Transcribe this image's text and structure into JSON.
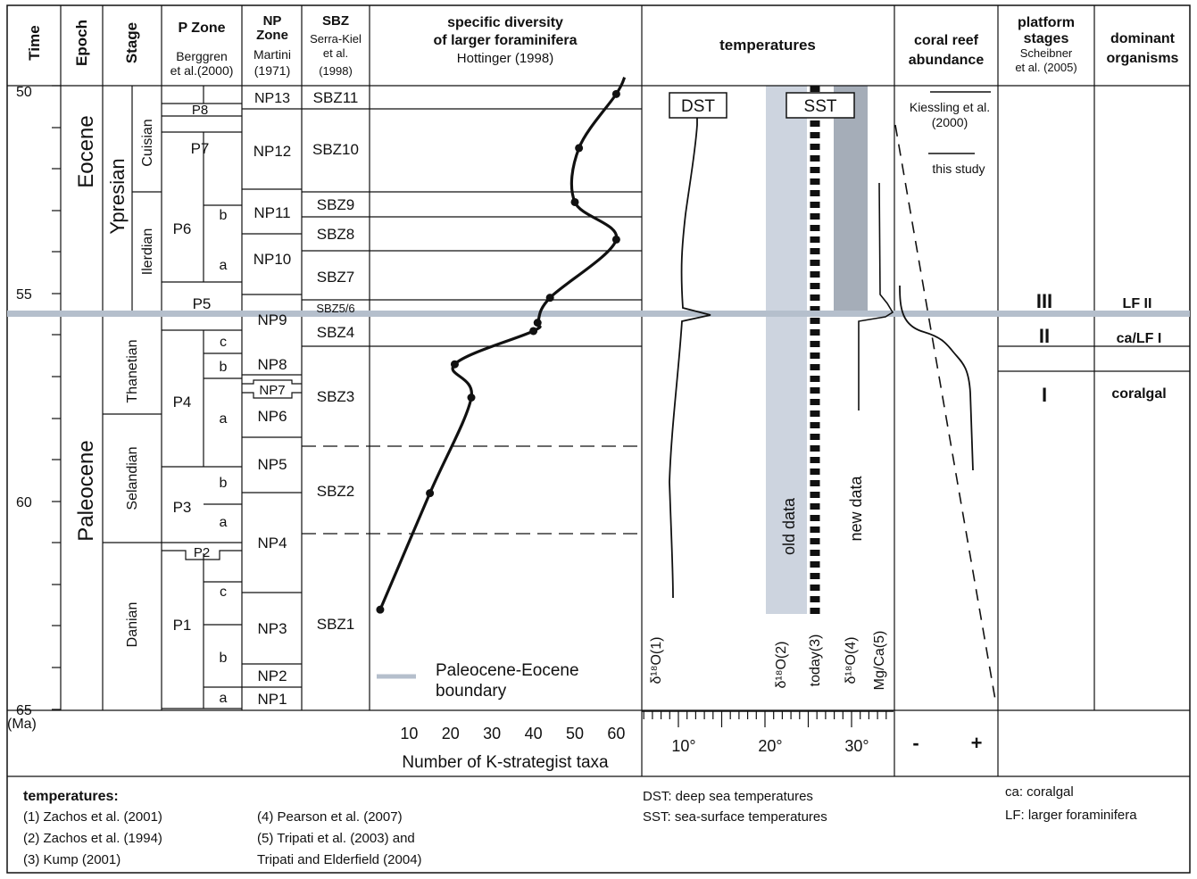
{
  "headers": {
    "time": "Time",
    "epoch": "Epoch",
    "stage": "Stage",
    "pzone": {
      "title": "P Zone",
      "l1": "Berggren",
      "l2": "et al.(2000)"
    },
    "npzone": {
      "t1": "NP",
      "t2": "Zone",
      "l1": "Martini",
      "l2": "(1971)"
    },
    "sbz": {
      "title": "SBZ",
      "l1": "Serra-Kiel",
      "l2": "et al.",
      "l3": "(1998)"
    },
    "diversity": {
      "t1": "specific diversity",
      "t2": "of larger foraminifera",
      "l1": "Hottinger (1998)"
    },
    "temperatures": "temperatures",
    "coral": {
      "t1": "coral reef",
      "t2": "abundance"
    },
    "platform": {
      "t1": "platform",
      "t2": "stages",
      "l1": "Scheibner",
      "l2": "et al. (2005)"
    },
    "organisms": {
      "t1": "dominant",
      "t2": "organisms"
    }
  },
  "time_axis": {
    "ticks": [
      {
        "age": 50,
        "label": "50"
      },
      {
        "age": 55,
        "label": "55"
      },
      {
        "age": 60,
        "label": "60"
      },
      {
        "age": 65,
        "label": "65"
      }
    ],
    "unit": "(Ma)"
  },
  "epochs": [
    {
      "name": "Eocene",
      "top": 50,
      "bottom": 55.5
    },
    {
      "name": "Paleocene",
      "top": 55.5,
      "bottom": 65
    }
  ],
  "stages": [
    {
      "name": "Ypresian"
    },
    {
      "name": "Cuisian"
    },
    {
      "name": "Ilerdian"
    },
    {
      "name": "Thanetian"
    },
    {
      "name": "Selandian"
    },
    {
      "name": "Danian"
    }
  ],
  "pzones": [
    {
      "name": "P8"
    },
    {
      "name": "P7"
    },
    {
      "name": "P6"
    },
    {
      "name": "b"
    },
    {
      "name": "a"
    },
    {
      "name": "P5"
    },
    {
      "name": "P4"
    },
    {
      "name": "c"
    },
    {
      "name": "b"
    },
    {
      "name": "a"
    },
    {
      "name": "P3"
    },
    {
      "name": "b"
    },
    {
      "name": "a"
    },
    {
      "name": "P2"
    },
    {
      "name": "P1"
    },
    {
      "name": "c"
    },
    {
      "name": "b"
    },
    {
      "name": "a"
    }
  ],
  "npzones": [
    "NP13",
    "NP12",
    "NP11",
    "NP10",
    "NP9",
    "NP8",
    "NP7",
    "NP6",
    "NP5",
    "NP4",
    "NP3",
    "NP2",
    "NP1"
  ],
  "sbzones": [
    "SBZ11",
    "SBZ10",
    "SBZ9",
    "SBZ8",
    "SBZ7",
    "SBZ5/6",
    "SBZ4",
    "SBZ3",
    "SBZ2",
    "SBZ1"
  ],
  "chart_data": {
    "type": "line",
    "xlabel": "Number of K-strategist taxa",
    "ylabel": "Time (Ma)",
    "xticks": [
      10,
      20,
      30,
      40,
      50,
      60
    ],
    "xlim": [
      0,
      65
    ],
    "ylim": [
      50,
      65
    ],
    "series": [
      {
        "name": "specific diversity of larger foraminifera",
        "points": [
          {
            "age": 50.2,
            "taxa": 60
          },
          {
            "age": 51.5,
            "taxa": 51
          },
          {
            "age": 52.8,
            "taxa": 50
          },
          {
            "age": 53.7,
            "taxa": 60
          },
          {
            "age": 55.1,
            "taxa": 44
          },
          {
            "age": 55.7,
            "taxa": 41
          },
          {
            "age": 55.9,
            "taxa": 40
          },
          {
            "age": 56.7,
            "taxa": 21
          },
          {
            "age": 57.5,
            "taxa": 25
          },
          {
            "age": 59.8,
            "taxa": 15
          },
          {
            "age": 62.6,
            "taxa": 3
          }
        ]
      }
    ],
    "legend": "Paleocene-Eocene boundary"
  },
  "temps": {
    "dst": "DST",
    "sst": "SST",
    "old": "old data",
    "new": "new data",
    "axis_ticks": [
      "10°",
      "20°",
      "30°"
    ],
    "labels": [
      "δ¹⁸O(1)",
      "δ¹⁸O(2)",
      "today(3)",
      "δ¹⁸O(4)",
      "Mg/Ca(5)"
    ]
  },
  "coral": {
    "kiessling": "Kiessling et al.",
    "kiessling2": "(2000)",
    "this_study": "this study",
    "minus": "-",
    "plus": "+"
  },
  "platform_stages": [
    "III",
    "II",
    "I"
  ],
  "organisms": [
    "LF II",
    "ca/LF I",
    "coralgal"
  ],
  "footer": {
    "title": "temperatures:",
    "refs_left": [
      "(1) Zachos et al. (2001)",
      "(2) Zachos et al. (1994)",
      "(3) Kump (2001)"
    ],
    "refs_mid": [
      "(4) Pearson et al. (2007)",
      "(5) Tripati et al. (2003) and",
      "Tripati and Elderfield (2004)"
    ],
    "abbr_mid": [
      "DST: deep sea temperatures",
      "SST: sea-surface temperatures"
    ],
    "abbr_right": [
      "ca: coralgal",
      "LF: larger foraminifera"
    ]
  }
}
